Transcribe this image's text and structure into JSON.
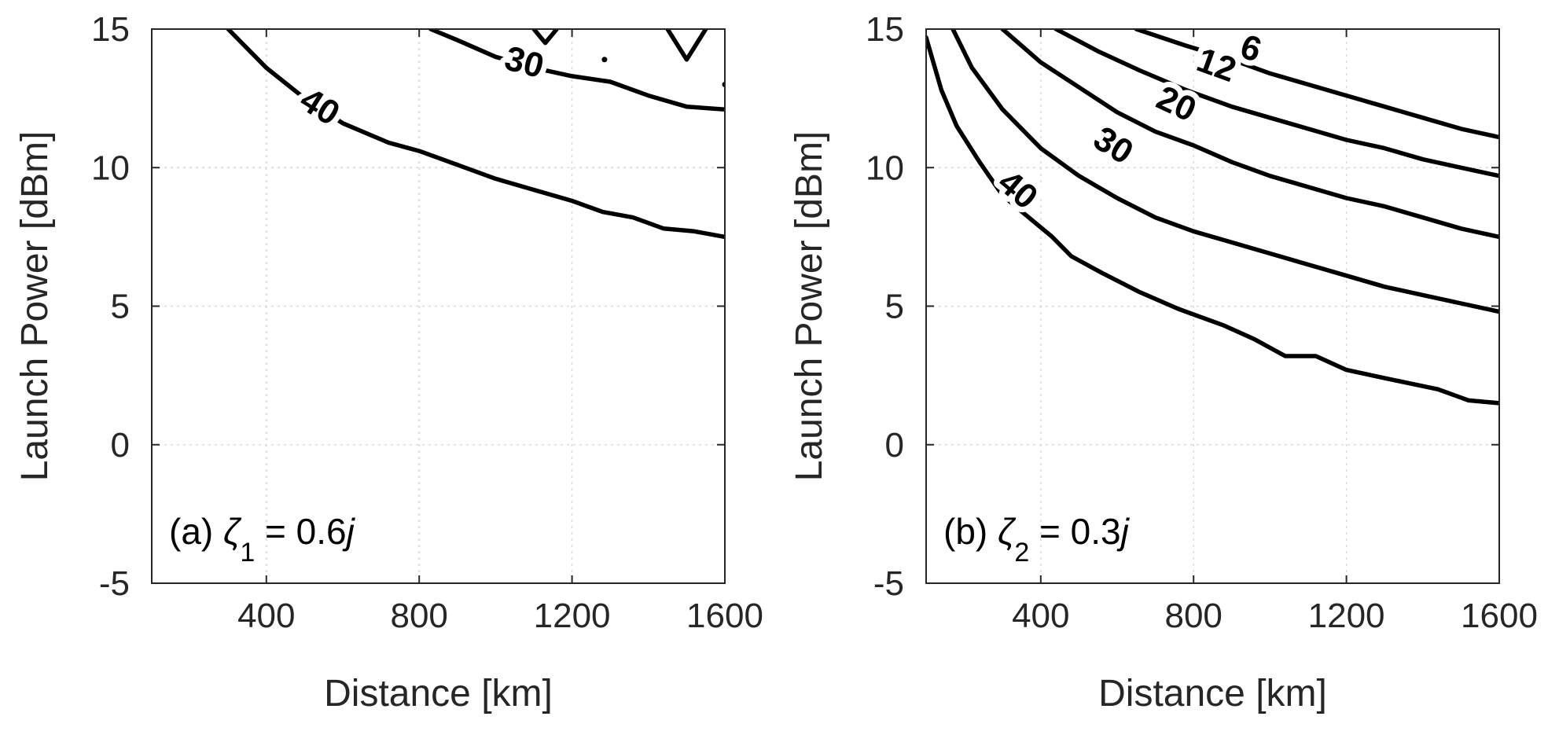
{
  "chart_data": [
    {
      "type": "contour",
      "panel_label": {
        "prefix": "(a) ",
        "symbol": "ζ",
        "subscript": "1",
        "relation": " = 0.6",
        "imag": "j"
      },
      "xlabel": "Distance [km]",
      "ylabel": "Launch Power [dBm]",
      "xlim": [
        100,
        1600
      ],
      "ylim": [
        -5,
        15
      ],
      "xticks": [
        400,
        800,
        1200,
        1600
      ],
      "xtick_labels": [
        "400",
        "800",
        "1200",
        "1600"
      ],
      "yticks": [
        -5,
        0,
        5,
        10,
        15
      ],
      "ytick_labels": [
        "-5",
        "0",
        "5",
        "10",
        "15"
      ],
      "grid": true,
      "contours": [
        {
          "level": "40",
          "points": [
            [
              300,
              15
            ],
            [
              400,
              13.6
            ],
            [
              500,
              12.5
            ],
            [
              600,
              11.6
            ],
            [
              720,
              10.9
            ],
            [
              800,
              10.6
            ],
            [
              900,
              10.1
            ],
            [
              1000,
              9.6
            ],
            [
              1100,
              9.2
            ],
            [
              1200,
              8.8
            ],
            [
              1280,
              8.4
            ],
            [
              1360,
              8.2
            ],
            [
              1440,
              7.8
            ],
            [
              1520,
              7.7
            ],
            [
              1600,
              7.5
            ]
          ],
          "label_at": [
            540,
            12.2
          ],
          "label_angle": 32
        },
        {
          "level": "30",
          "points": [
            [
              830,
              15
            ],
            [
              900,
              14.6
            ],
            [
              1000,
              14.0
            ],
            [
              1100,
              13.6
            ],
            [
              1200,
              13.3
            ],
            [
              1300,
              13.1
            ],
            [
              1400,
              12.6
            ],
            [
              1500,
              12.2
            ],
            [
              1600,
              12.1
            ]
          ],
          "label_at": [
            1075,
            13.8
          ],
          "label_angle": 15
        },
        {
          "level": "",
          "points": [
            [
              1100,
              15
            ],
            [
              1130,
              14.5
            ],
            [
              1160,
              15
            ]
          ]
        },
        {
          "level": "",
          "points": [
            [
              1450,
              15
            ],
            [
              1500,
              13.9
            ],
            [
              1550,
              15
            ]
          ]
        }
      ],
      "dots": [
        [
          1285,
          13.9
        ],
        [
          1600,
          13.0
        ]
      ]
    },
    {
      "type": "contour",
      "panel_label": {
        "prefix": "(b) ",
        "symbol": "ζ",
        "subscript": "2",
        "relation": " = 0.3",
        "imag": "j"
      },
      "xlabel": "Distance [km]",
      "ylabel": "Launch Power [dBm]",
      "xlim": [
        100,
        1600
      ],
      "ylim": [
        -5,
        15
      ],
      "xticks": [
        400,
        800,
        1200,
        1600
      ],
      "xtick_labels": [
        "400",
        "800",
        "1200",
        "1600"
      ],
      "yticks": [
        -5,
        0,
        5,
        10,
        15
      ],
      "ytick_labels": [
        "-5",
        "0",
        "5",
        "10",
        "15"
      ],
      "grid": true,
      "contours": [
        {
          "level": "40",
          "points": [
            [
              100,
              14.7
            ],
            [
              140,
              12.8
            ],
            [
              180,
              11.5
            ],
            [
              240,
              10.2
            ],
            [
              300,
              9.0
            ],
            [
              360,
              8.3
            ],
            [
              430,
              7.5
            ],
            [
              480,
              6.8
            ],
            [
              560,
              6.2
            ],
            [
              660,
              5.5
            ],
            [
              760,
              4.9
            ],
            [
              880,
              4.3
            ],
            [
              960,
              3.8
            ],
            [
              1040,
              3.2
            ],
            [
              1120,
              3.2
            ],
            [
              1200,
              2.7
            ],
            [
              1300,
              2.4
            ],
            [
              1440,
              2.0
            ],
            [
              1520,
              1.6
            ],
            [
              1600,
              1.5
            ]
          ],
          "label_at": [
            340,
            9.2
          ],
          "label_angle": 40
        },
        {
          "level": "30",
          "points": [
            [
              170,
              15
            ],
            [
              220,
              13.6
            ],
            [
              300,
              12.1
            ],
            [
              400,
              10.7
            ],
            [
              500,
              9.7
            ],
            [
              600,
              8.9
            ],
            [
              700,
              8.2
            ],
            [
              800,
              7.7
            ],
            [
              900,
              7.3
            ],
            [
              1000,
              6.9
            ],
            [
              1100,
              6.5
            ],
            [
              1200,
              6.1
            ],
            [
              1300,
              5.7
            ],
            [
              1400,
              5.4
            ],
            [
              1500,
              5.1
            ],
            [
              1600,
              4.8
            ]
          ],
          "label_at": [
            590,
            10.8
          ],
          "label_angle": 32
        },
        {
          "level": "20",
          "points": [
            [
              300,
              15
            ],
            [
              400,
              13.8
            ],
            [
              500,
              12.9
            ],
            [
              600,
              12.0
            ],
            [
              700,
              11.3
            ],
            [
              800,
              10.8
            ],
            [
              900,
              10.2
            ],
            [
              1000,
              9.7
            ],
            [
              1100,
              9.3
            ],
            [
              1200,
              8.9
            ],
            [
              1300,
              8.6
            ],
            [
              1400,
              8.2
            ],
            [
              1500,
              7.8
            ],
            [
              1600,
              7.5
            ]
          ],
          "label_at": [
            755,
            12.3
          ],
          "label_angle": 25
        },
        {
          "level": "12",
          "points": [
            [
              440,
              15
            ],
            [
              550,
              14.2
            ],
            [
              660,
              13.5
            ],
            [
              780,
              12.8
            ],
            [
              900,
              12.2
            ],
            [
              1000,
              11.8
            ],
            [
              1100,
              11.4
            ],
            [
              1200,
              11.0
            ],
            [
              1300,
              10.7
            ],
            [
              1400,
              10.3
            ],
            [
              1500,
              10.0
            ],
            [
              1600,
              9.7
            ]
          ],
          "label_at": [
            860,
            13.7
          ],
          "label_angle": 20
        },
        {
          "level": "6",
          "points": [
            [
              650,
              15
            ],
            [
              780,
              14.4
            ],
            [
              900,
              13.9
            ],
            [
              1000,
              13.4
            ],
            [
              1100,
              13.0
            ],
            [
              1200,
              12.6
            ],
            [
              1300,
              12.2
            ],
            [
              1400,
              11.8
            ],
            [
              1500,
              11.4
            ],
            [
              1600,
              11.1
            ]
          ],
          "label_at": [
            950,
            14.3
          ],
          "label_angle": 18
        }
      ],
      "dots": []
    }
  ]
}
